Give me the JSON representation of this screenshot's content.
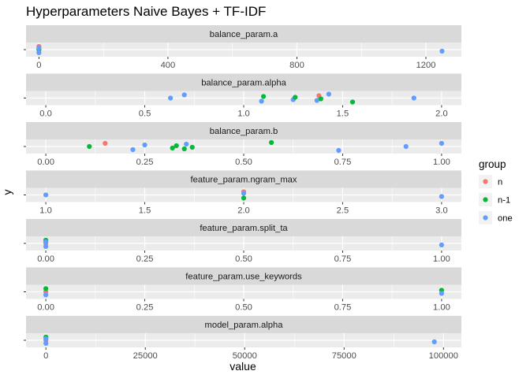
{
  "chart_data": {
    "type": "scatter",
    "title": "Hyperparameters Naive Bayes + TF-IDF",
    "xlabel": "value",
    "ylabel": "y",
    "legend": {
      "title": "group",
      "position": "right",
      "entries": [
        {
          "label": "n",
          "color": "#F8766D"
        },
        {
          "label": "n-1",
          "color": "#00BA38"
        },
        {
          "label": "one",
          "color": "#619CFF"
        }
      ]
    },
    "grid": true,
    "panels": [
      {
        "label": "balance_param.a",
        "xlim": [
          -40,
          1310
        ],
        "ticks": [
          0,
          400,
          800,
          1200
        ],
        "tick_labels": [
          "0",
          "400",
          "800",
          "1200"
        ],
        "minor_ticks": [
          200,
          600,
          1000
        ],
        "points": [
          {
            "x": 0,
            "group": "n-1"
          },
          {
            "x": 0,
            "group": "n"
          },
          {
            "x": 0,
            "group": "one"
          },
          {
            "x": 0,
            "group": "one"
          },
          {
            "x": 1250,
            "group": "one"
          }
        ]
      },
      {
        "label": "balance_param.alpha",
        "xlim": [
          -0.1,
          2.1
        ],
        "ticks": [
          0.0,
          0.5,
          1.0,
          1.5,
          2.0
        ],
        "tick_labels": [
          "0.0",
          "0.5",
          "1.0",
          "1.5",
          "2.0"
        ],
        "minor_ticks": [
          0.25,
          0.75,
          1.25,
          1.75
        ],
        "points": [
          {
            "x": 0.63,
            "group": "one"
          },
          {
            "x": 0.7,
            "group": "one"
          },
          {
            "x": 1.09,
            "group": "one"
          },
          {
            "x": 1.1,
            "group": "n-1"
          },
          {
            "x": 1.25,
            "group": "one"
          },
          {
            "x": 1.26,
            "group": "n-1"
          },
          {
            "x": 1.37,
            "group": "one"
          },
          {
            "x": 1.38,
            "group": "n"
          },
          {
            "x": 1.39,
            "group": "n-1"
          },
          {
            "x": 1.43,
            "group": "one"
          },
          {
            "x": 1.55,
            "group": "n-1"
          },
          {
            "x": 1.86,
            "group": "one"
          }
        ]
      },
      {
        "label": "balance_param.b",
        "xlim": [
          -0.05,
          1.05
        ],
        "ticks": [
          0.0,
          0.25,
          0.5,
          0.75,
          1.0
        ],
        "tick_labels": [
          "0.00",
          "0.25",
          "0.50",
          "0.75",
          "1.00"
        ],
        "minor_ticks": [
          0.125,
          0.375,
          0.625,
          0.875
        ],
        "points": [
          {
            "x": 0.11,
            "group": "n-1"
          },
          {
            "x": 0.15,
            "group": "n"
          },
          {
            "x": 0.22,
            "group": "one"
          },
          {
            "x": 0.25,
            "group": "one"
          },
          {
            "x": 0.32,
            "group": "n-1"
          },
          {
            "x": 0.33,
            "group": "n-1"
          },
          {
            "x": 0.35,
            "group": "n-1"
          },
          {
            "x": 0.355,
            "group": "one"
          },
          {
            "x": 0.37,
            "group": "n-1"
          },
          {
            "x": 0.57,
            "group": "n-1"
          },
          {
            "x": 0.74,
            "group": "one"
          },
          {
            "x": 0.91,
            "group": "one"
          },
          {
            "x": 1.0,
            "group": "one"
          }
        ]
      },
      {
        "label": "feature_param.ngram_max",
        "xlim": [
          0.9,
          3.1
        ],
        "ticks": [
          1.0,
          1.5,
          2.0,
          2.5,
          3.0
        ],
        "tick_labels": [
          "1.0",
          "1.5",
          "2.0",
          "2.5",
          "3.0"
        ],
        "minor_ticks": [
          1.25,
          1.75,
          2.25,
          2.75
        ],
        "points": [
          {
            "x": 1.0,
            "group": "one"
          },
          {
            "x": 2.0,
            "group": "n"
          },
          {
            "x": 2.0,
            "group": "n-1"
          },
          {
            "x": 2.0,
            "group": "one"
          },
          {
            "x": 3.0,
            "group": "one"
          }
        ]
      },
      {
        "label": "feature_param.split_ta",
        "xlim": [
          -0.05,
          1.05
        ],
        "ticks": [
          0.0,
          0.25,
          0.5,
          0.75,
          1.0
        ],
        "tick_labels": [
          "0.00",
          "0.25",
          "0.50",
          "0.75",
          "1.00"
        ],
        "minor_ticks": [
          0.125,
          0.375,
          0.625,
          0.875
        ],
        "points": [
          {
            "x": 0.0,
            "group": "n"
          },
          {
            "x": 0.0,
            "group": "n-1"
          },
          {
            "x": 0.0,
            "group": "one"
          },
          {
            "x": 0.0,
            "group": "one"
          },
          {
            "x": 1.0,
            "group": "one"
          }
        ]
      },
      {
        "label": "feature_param.use_keywords",
        "xlim": [
          -0.05,
          1.05
        ],
        "ticks": [
          0.0,
          0.25,
          0.5,
          0.75,
          1.0
        ],
        "tick_labels": [
          "0.00",
          "0.25",
          "0.50",
          "0.75",
          "1.00"
        ],
        "minor_ticks": [
          0.125,
          0.375,
          0.625,
          0.875
        ],
        "points": [
          {
            "x": 0.0,
            "group": "n"
          },
          {
            "x": 0.0,
            "group": "n-1"
          },
          {
            "x": 0.0,
            "group": "one"
          },
          {
            "x": 1.0,
            "group": "n-1"
          },
          {
            "x": 1.0,
            "group": "one"
          }
        ]
      },
      {
        "label": "model_param.alpha",
        "xlim": [
          -5000,
          104500
        ],
        "ticks": [
          0,
          25000,
          50000,
          75000,
          100000
        ],
        "tick_labels": [
          "0",
          "25000",
          "50000",
          "75000",
          "100000"
        ],
        "minor_ticks": [
          12500,
          37500,
          62500,
          87500
        ],
        "points": [
          {
            "x": 0,
            "group": "n"
          },
          {
            "x": 0,
            "group": "n-1"
          },
          {
            "x": 0,
            "group": "one"
          },
          {
            "x": 0,
            "group": "one"
          },
          {
            "x": 97700,
            "group": "one"
          }
        ]
      }
    ]
  }
}
